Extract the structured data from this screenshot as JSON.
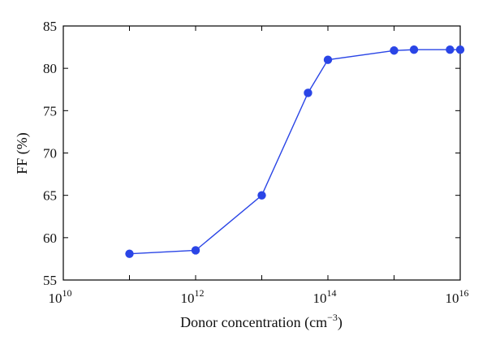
{
  "chart_data": {
    "type": "line",
    "xlabel": "Donor concentration (cm",
    "xlabel_unit_exponent": "−3",
    "xlabel_close": ")",
    "ylabel": "FF (%)",
    "x_scale": "log",
    "xlim": [
      10000000000.0,
      1e+16
    ],
    "ylim": [
      55,
      85
    ],
    "x_ticks": [
      {
        "base": "10",
        "exp": "10"
      },
      {
        "base": "10",
        "exp": "12"
      },
      {
        "base": "10",
        "exp": "14"
      },
      {
        "base": "10",
        "exp": "16"
      }
    ],
    "y_ticks": [
      "55",
      "60",
      "65",
      "70",
      "75",
      "80",
      "85"
    ],
    "grid": false,
    "legend": "none",
    "series": [
      {
        "color": "#2a45e6",
        "marker": "circle",
        "x": [
          100000000000.0,
          1000000000000.0,
          10000000000000.0,
          50000000000000.0,
          100000000000000.0,
          1000000000000000.0,
          2000000000000000.0,
          7000000000000000.0,
          1e+16
        ],
        "y": [
          58.1,
          58.5,
          65.0,
          77.1,
          81.0,
          82.1,
          82.2,
          82.2,
          82.2
        ]
      }
    ]
  }
}
